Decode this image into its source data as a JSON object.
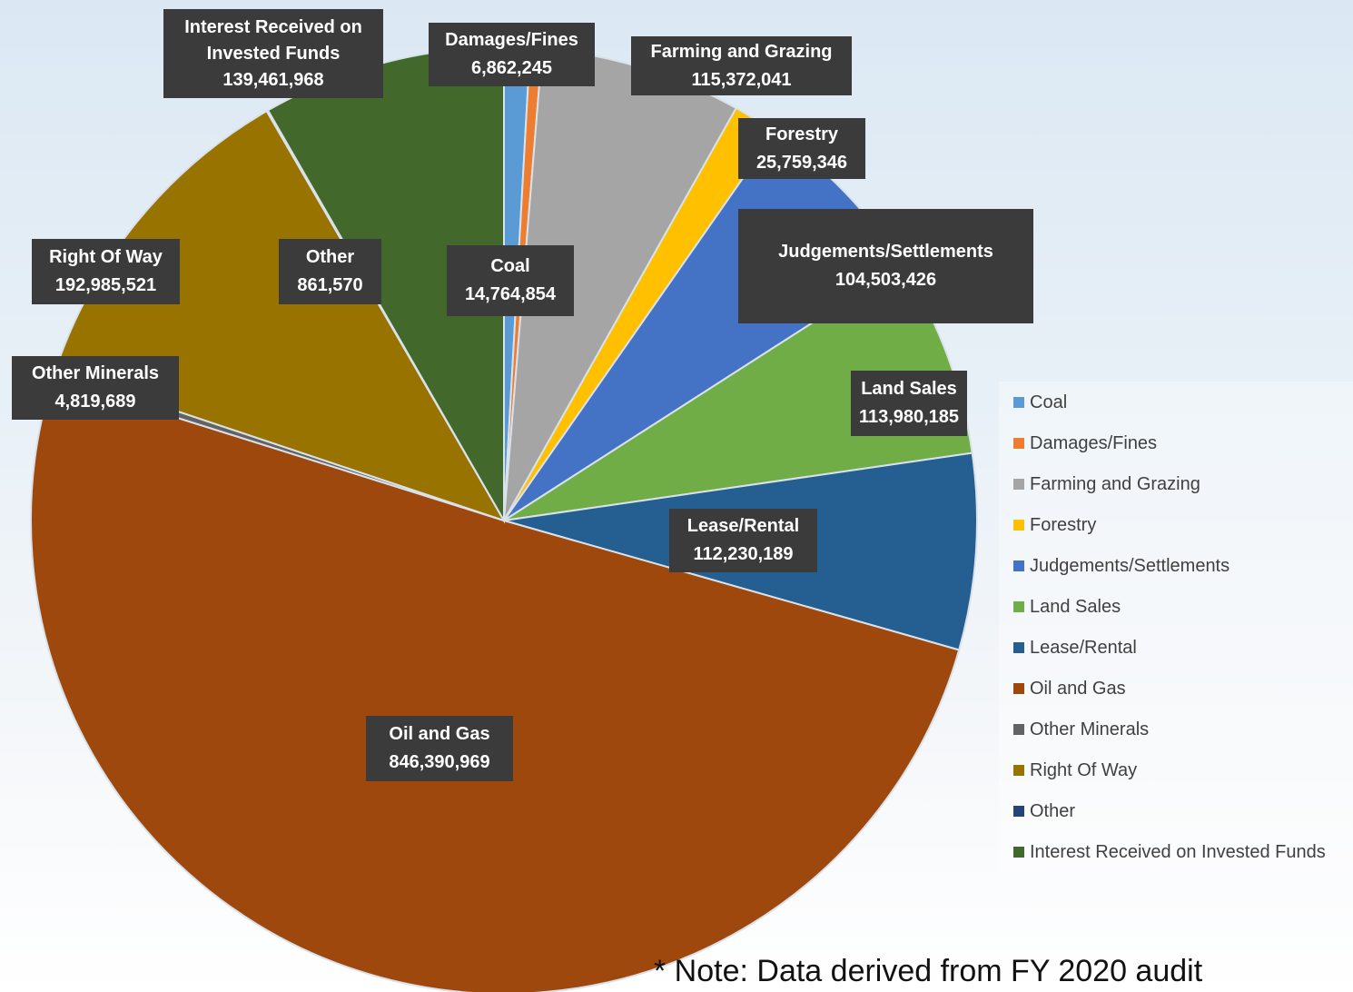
{
  "chart_data": {
    "type": "pie",
    "categories": [
      "Coal",
      "Damages/Fines",
      "Farming and Grazing",
      "Forestry",
      "Judgements/Settlements",
      "Land Sales",
      "Lease/Rental",
      "Oil and Gas",
      "Other Minerals",
      "Right Of Way",
      "Other",
      "Interest Received on Invested Funds"
    ],
    "values": [
      14764854,
      6862245,
      115372041,
      25759346,
      104503426,
      113980185,
      112230189,
      846390969,
      4819689,
      192985521,
      861570,
      139461968
    ],
    "value_labels": [
      "14,764,854",
      "6,862,245",
      "115,372,041",
      "25,759,346",
      "104,503,426",
      "113,980,185",
      "112,230,189",
      "846,390,969",
      "4,819,689",
      "192,985,521",
      "861,570",
      "139,461,968"
    ],
    "colors": [
      "#5b9bd5",
      "#ed7d31",
      "#a5a5a5",
      "#ffc000",
      "#4472c4",
      "#70ad47",
      "#255e91",
      "#9e480e",
      "#636363",
      "#997300",
      "#264478",
      "#43682b"
    ],
    "legend": "right",
    "note": "* Note: Data derived from FY 2020 audit"
  }
}
